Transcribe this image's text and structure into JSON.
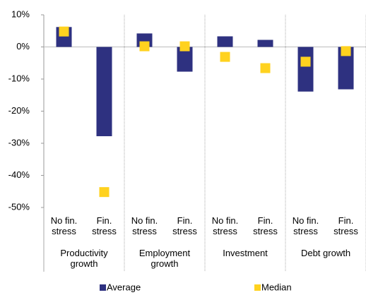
{
  "chart_data": {
    "type": "bar",
    "categories": [
      "No fin. stress",
      "Fin. stress",
      "No fin. stress",
      "Fin. stress",
      "No fin. stress",
      "Fin. stress",
      "No fin. stress",
      "Fin. stress"
    ],
    "groups": [
      "Productivity growth",
      "Employment growth",
      "Investment",
      "Debt growth"
    ],
    "series": [
      {
        "name": "Average",
        "color": "#2e3180",
        "mark": "bar",
        "values": [
          6.2,
          -27.8,
          4.2,
          -7.7,
          3.3,
          2.2,
          -13.9,
          -13.2
        ]
      },
      {
        "name": "Median",
        "color": "#ffd21f",
        "mark": "square",
        "values": [
          4.8,
          -45.2,
          0.2,
          0.2,
          -3.1,
          -6.6,
          -4.6,
          -1.3
        ]
      }
    ],
    "ylim": [
      -50,
      10
    ],
    "yticks": [
      {
        "value": 10,
        "label": "10%"
      },
      {
        "value": 0,
        "label": "0%"
      },
      {
        "value": -10,
        "label": "-10%"
      },
      {
        "value": -20,
        "label": "-20%"
      },
      {
        "value": -30,
        "label": "-30%"
      },
      {
        "value": -40,
        "label": "-40%"
      },
      {
        "value": -50,
        "label": "-50%"
      }
    ]
  }
}
